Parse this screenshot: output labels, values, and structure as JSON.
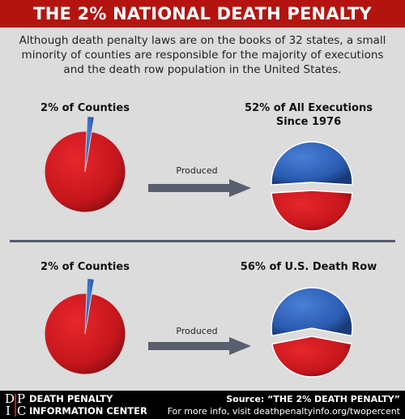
{
  "title": "THE 2% NATIONAL DEATH PENALTY",
  "intro": "Although death penalty laws are on the books of 32 states, a small minority of counties are responsible for the majority of executions and the death row population in the United States.",
  "colors": {
    "red": "#c4161c",
    "blue": "#2a5bb0",
    "title_bg": "#b3140f",
    "arrow": "#5a5f70"
  },
  "chart_data": [
    {
      "type": "pie",
      "title": "2% of Counties",
      "slices": [
        {
          "label": "",
          "value": 2,
          "color": "#2a5bb0"
        },
        {
          "label": "",
          "value": 98,
          "color": "#c4161c"
        }
      ]
    },
    {
      "type": "pie",
      "title": "52% of All Executions Since 1976",
      "slices": [
        {
          "label": "",
          "value": 52,
          "color": "#2a5bb0"
        },
        {
          "label": "",
          "value": 48,
          "color": "#c4161c"
        }
      ]
    },
    {
      "type": "pie",
      "title": "2% of Counties",
      "slices": [
        {
          "label": "",
          "value": 2,
          "color": "#2a5bb0"
        },
        {
          "label": "",
          "value": 98,
          "color": "#c4161c"
        }
      ]
    },
    {
      "type": "pie",
      "title": "56% of U.S. Death Row",
      "slices": [
        {
          "label": "",
          "value": 56,
          "color": "#2a5bb0"
        },
        {
          "label": "",
          "value": 44,
          "color": "#c4161c"
        }
      ]
    }
  ],
  "panels": {
    "top": {
      "left_label": "2% of Counties",
      "right_label_1": "52% of All Executions",
      "right_label_2": "Since 1976",
      "arrow_label": "Produced"
    },
    "bottom": {
      "left_label": "2% of Counties",
      "right_label": "56% of U.S. Death Row",
      "arrow_label": "Produced"
    }
  },
  "footer": {
    "logo_letters": [
      "D",
      "P",
      "I",
      "C"
    ],
    "org_line1": "DEATH PENALTY",
    "org_line2": "INFORMATION CENTER",
    "source_prefix": "Source: ",
    "source_title": "“THE 2% DEATH PENALTY”",
    "more_info": "For more info, visit deathpenaltyinfo.org/twopercent"
  }
}
